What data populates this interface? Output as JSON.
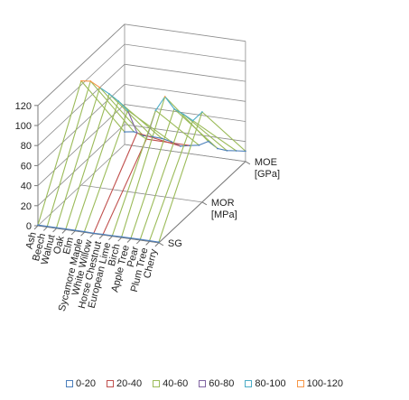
{
  "chart_data": {
    "type": "line",
    "subtype": "3d-surface-wireframe",
    "categories": [
      "Ash",
      "Beech",
      "Walnut",
      "Oak",
      "Elm",
      "Sycamore Maple",
      "White Willow",
      "Horse Chestnut",
      "European Lime",
      "Birch",
      "Apple Tree",
      "Pear",
      "Plum Tree",
      "Cherry"
    ],
    "depth_axis": [
      "SG",
      "MOR [MPa]",
      "MOE [GPa]"
    ],
    "zlim": [
      0,
      120
    ],
    "z_ticks": [
      0,
      20,
      40,
      60,
      80,
      100,
      120
    ],
    "grid": true,
    "legend_position": "bottom",
    "series": [
      {
        "name": "SG",
        "values": [
          0.69,
          0.72,
          0.67,
          0.71,
          0.66,
          0.61,
          0.4,
          0.55,
          0.54,
          0.65,
          0.72,
          0.73,
          0.74,
          0.6
        ]
      },
      {
        "name": "MOR [MPa]",
        "values": [
          104,
          105,
          100,
          95,
          89,
          81,
          60,
          55,
          85,
          100,
          89,
          85,
          80,
          90
        ]
      },
      {
        "name": "MOE [GPa]",
        "values": [
          12.5,
          14,
          11.4,
          11.7,
          11.3,
          9.4,
          6.1,
          8.1,
          9.7,
          14.8,
          9,
          8.2,
          9.4,
          10.3
        ]
      }
    ],
    "color_bands": [
      {
        "name": "0-20",
        "color": "#4a7ebb"
      },
      {
        "name": "20-40",
        "color": "#c0504d"
      },
      {
        "name": "40-60",
        "color": "#9bbb59"
      },
      {
        "name": "60-80",
        "color": "#8064a2"
      },
      {
        "name": "80-100",
        "color": "#4bacc6"
      },
      {
        "name": "100-120",
        "color": "#f79646"
      }
    ]
  }
}
